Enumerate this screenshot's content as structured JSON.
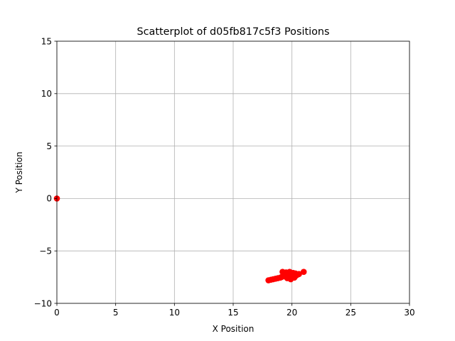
{
  "chart_data": {
    "type": "scatter",
    "title": "Scatterplot of d05fb817c5f3 Positions",
    "xlabel": "X Position",
    "ylabel": "Y Position",
    "xlim": [
      0,
      30
    ],
    "ylim": [
      -10,
      15
    ],
    "xticks": [
      0,
      5,
      10,
      15,
      20,
      25,
      30
    ],
    "yticks": [
      -10,
      -5,
      0,
      5,
      10,
      15
    ],
    "xtick_labels": [
      "0",
      "5",
      "10",
      "15",
      "20",
      "25",
      "30"
    ],
    "ytick_labels": [
      "−10",
      "−5",
      "0",
      "5",
      "10",
      "15"
    ],
    "grid": true,
    "marker_color": "#ff0000",
    "series": [
      {
        "x": [
          0.0,
          18.0,
          18.2,
          18.4,
          18.6,
          18.8,
          19.0,
          19.1,
          19.2,
          19.3,
          19.4,
          19.5,
          19.6,
          19.7,
          19.8,
          19.9,
          20.0,
          20.1,
          20.2,
          20.3,
          20.4,
          20.5,
          20.6,
          21.0,
          19.2,
          19.5,
          19.8,
          20.1,
          20.3,
          19.6,
          19.9,
          20.0,
          19.4,
          20.2
        ],
        "y": [
          0.0,
          -7.8,
          -7.75,
          -7.7,
          -7.65,
          -7.6,
          -7.55,
          -7.5,
          -7.45,
          -7.4,
          -7.35,
          -7.3,
          -7.3,
          -7.25,
          -7.2,
          -7.2,
          -7.25,
          -7.3,
          -7.35,
          -7.4,
          -7.3,
          -7.25,
          -7.2,
          -7.0,
          -7.0,
          -7.05,
          -7.0,
          -7.1,
          -7.15,
          -7.6,
          -7.7,
          -7.5,
          -7.15,
          -7.55
        ]
      }
    ]
  }
}
